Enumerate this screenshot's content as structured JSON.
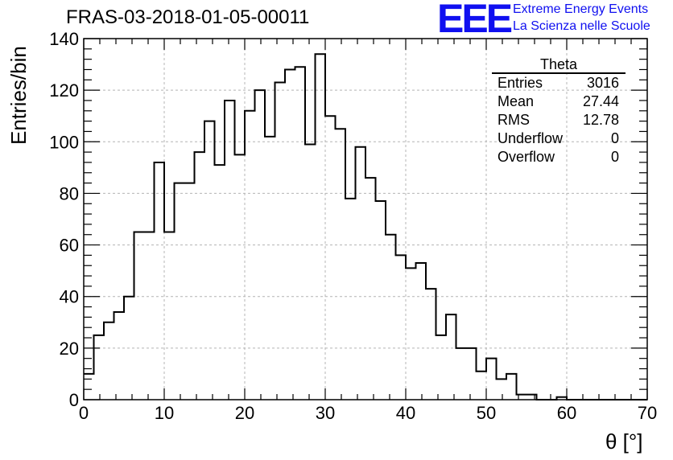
{
  "title": "FRAS-03-2018-01-05-00011",
  "logo": {
    "mark": "EEE",
    "line1": "Extreme Energy Events",
    "line2": "La Scienza nelle Scuole",
    "color": "#1010f0"
  },
  "stats": {
    "name": "Theta",
    "rows": [
      {
        "label": "Entries",
        "value": "3016"
      },
      {
        "label": "Mean",
        "value": "27.44"
      },
      {
        "label": "RMS",
        "value": "12.78"
      },
      {
        "label": "Underflow",
        "value": "0"
      },
      {
        "label": "Overflow",
        "value": "0"
      }
    ]
  },
  "chart_data": {
    "type": "bar",
    "style": "step-histogram",
    "xlabel": "θ [°]",
    "ylabel": "Entries/bin",
    "xlim": [
      0,
      70
    ],
    "ylim": [
      0,
      140
    ],
    "grid": true,
    "bin_width": 1.25,
    "x_ticks": [
      0,
      10,
      20,
      30,
      40,
      50,
      60,
      70
    ],
    "y_ticks": [
      0,
      20,
      40,
      60,
      80,
      100,
      120,
      140
    ],
    "values": [
      10,
      25,
      30,
      34,
      40,
      65,
      65,
      92,
      65,
      84,
      84,
      96,
      108,
      91,
      116,
      95,
      112,
      120,
      102,
      123,
      128,
      129,
      99,
      134,
      110,
      105,
      78,
      98,
      86,
      77,
      64,
      56,
      51,
      53,
      43,
      25,
      33,
      20,
      20,
      11,
      16,
      8,
      10,
      2,
      2,
      0,
      0,
      1,
      0,
      0,
      0,
      0,
      0,
      0,
      0,
      0
    ]
  }
}
